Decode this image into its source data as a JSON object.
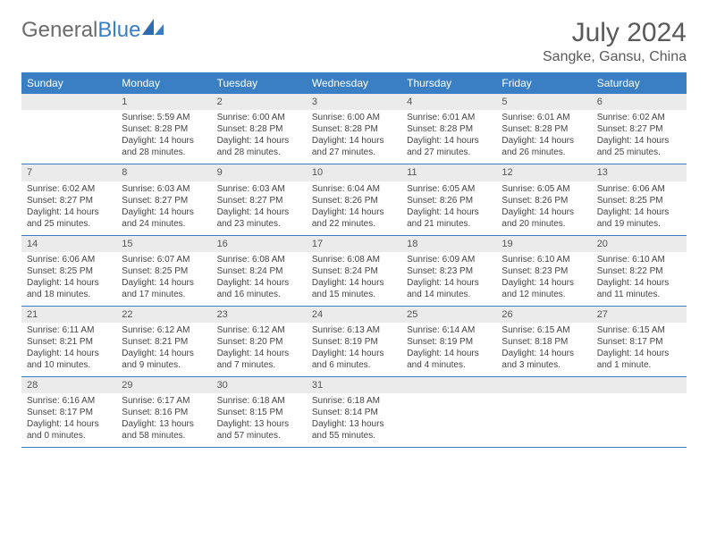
{
  "brand": {
    "part1": "General",
    "part2": "Blue"
  },
  "title": "July 2024",
  "location": "Sangke, Gansu, China",
  "colors": {
    "header_bg": "#3a7fc4",
    "header_text": "#ffffff",
    "daynum_bg": "#ebebeb",
    "text": "#444444",
    "brand_gray": "#6b6b6b",
    "brand_blue": "#3a7fc4"
  },
  "dayNames": [
    "Sunday",
    "Monday",
    "Tuesday",
    "Wednesday",
    "Thursday",
    "Friday",
    "Saturday"
  ],
  "weeks": [
    [
      {
        "n": "",
        "sunrise": "",
        "sunset": "",
        "daylight": ""
      },
      {
        "n": "1",
        "sunrise": "Sunrise: 5:59 AM",
        "sunset": "Sunset: 8:28 PM",
        "daylight": "Daylight: 14 hours and 28 minutes."
      },
      {
        "n": "2",
        "sunrise": "Sunrise: 6:00 AM",
        "sunset": "Sunset: 8:28 PM",
        "daylight": "Daylight: 14 hours and 28 minutes."
      },
      {
        "n": "3",
        "sunrise": "Sunrise: 6:00 AM",
        "sunset": "Sunset: 8:28 PM",
        "daylight": "Daylight: 14 hours and 27 minutes."
      },
      {
        "n": "4",
        "sunrise": "Sunrise: 6:01 AM",
        "sunset": "Sunset: 8:28 PM",
        "daylight": "Daylight: 14 hours and 27 minutes."
      },
      {
        "n": "5",
        "sunrise": "Sunrise: 6:01 AM",
        "sunset": "Sunset: 8:28 PM",
        "daylight": "Daylight: 14 hours and 26 minutes."
      },
      {
        "n": "6",
        "sunrise": "Sunrise: 6:02 AM",
        "sunset": "Sunset: 8:27 PM",
        "daylight": "Daylight: 14 hours and 25 minutes."
      }
    ],
    [
      {
        "n": "7",
        "sunrise": "Sunrise: 6:02 AM",
        "sunset": "Sunset: 8:27 PM",
        "daylight": "Daylight: 14 hours and 25 minutes."
      },
      {
        "n": "8",
        "sunrise": "Sunrise: 6:03 AM",
        "sunset": "Sunset: 8:27 PM",
        "daylight": "Daylight: 14 hours and 24 minutes."
      },
      {
        "n": "9",
        "sunrise": "Sunrise: 6:03 AM",
        "sunset": "Sunset: 8:27 PM",
        "daylight": "Daylight: 14 hours and 23 minutes."
      },
      {
        "n": "10",
        "sunrise": "Sunrise: 6:04 AM",
        "sunset": "Sunset: 8:26 PM",
        "daylight": "Daylight: 14 hours and 22 minutes."
      },
      {
        "n": "11",
        "sunrise": "Sunrise: 6:05 AM",
        "sunset": "Sunset: 8:26 PM",
        "daylight": "Daylight: 14 hours and 21 minutes."
      },
      {
        "n": "12",
        "sunrise": "Sunrise: 6:05 AM",
        "sunset": "Sunset: 8:26 PM",
        "daylight": "Daylight: 14 hours and 20 minutes."
      },
      {
        "n": "13",
        "sunrise": "Sunrise: 6:06 AM",
        "sunset": "Sunset: 8:25 PM",
        "daylight": "Daylight: 14 hours and 19 minutes."
      }
    ],
    [
      {
        "n": "14",
        "sunrise": "Sunrise: 6:06 AM",
        "sunset": "Sunset: 8:25 PM",
        "daylight": "Daylight: 14 hours and 18 minutes."
      },
      {
        "n": "15",
        "sunrise": "Sunrise: 6:07 AM",
        "sunset": "Sunset: 8:25 PM",
        "daylight": "Daylight: 14 hours and 17 minutes."
      },
      {
        "n": "16",
        "sunrise": "Sunrise: 6:08 AM",
        "sunset": "Sunset: 8:24 PM",
        "daylight": "Daylight: 14 hours and 16 minutes."
      },
      {
        "n": "17",
        "sunrise": "Sunrise: 6:08 AM",
        "sunset": "Sunset: 8:24 PM",
        "daylight": "Daylight: 14 hours and 15 minutes."
      },
      {
        "n": "18",
        "sunrise": "Sunrise: 6:09 AM",
        "sunset": "Sunset: 8:23 PM",
        "daylight": "Daylight: 14 hours and 14 minutes."
      },
      {
        "n": "19",
        "sunrise": "Sunrise: 6:10 AM",
        "sunset": "Sunset: 8:23 PM",
        "daylight": "Daylight: 14 hours and 12 minutes."
      },
      {
        "n": "20",
        "sunrise": "Sunrise: 6:10 AM",
        "sunset": "Sunset: 8:22 PM",
        "daylight": "Daylight: 14 hours and 11 minutes."
      }
    ],
    [
      {
        "n": "21",
        "sunrise": "Sunrise: 6:11 AM",
        "sunset": "Sunset: 8:21 PM",
        "daylight": "Daylight: 14 hours and 10 minutes."
      },
      {
        "n": "22",
        "sunrise": "Sunrise: 6:12 AM",
        "sunset": "Sunset: 8:21 PM",
        "daylight": "Daylight: 14 hours and 9 minutes."
      },
      {
        "n": "23",
        "sunrise": "Sunrise: 6:12 AM",
        "sunset": "Sunset: 8:20 PM",
        "daylight": "Daylight: 14 hours and 7 minutes."
      },
      {
        "n": "24",
        "sunrise": "Sunrise: 6:13 AM",
        "sunset": "Sunset: 8:19 PM",
        "daylight": "Daylight: 14 hours and 6 minutes."
      },
      {
        "n": "25",
        "sunrise": "Sunrise: 6:14 AM",
        "sunset": "Sunset: 8:19 PM",
        "daylight": "Daylight: 14 hours and 4 minutes."
      },
      {
        "n": "26",
        "sunrise": "Sunrise: 6:15 AM",
        "sunset": "Sunset: 8:18 PM",
        "daylight": "Daylight: 14 hours and 3 minutes."
      },
      {
        "n": "27",
        "sunrise": "Sunrise: 6:15 AM",
        "sunset": "Sunset: 8:17 PM",
        "daylight": "Daylight: 14 hours and 1 minute."
      }
    ],
    [
      {
        "n": "28",
        "sunrise": "Sunrise: 6:16 AM",
        "sunset": "Sunset: 8:17 PM",
        "daylight": "Daylight: 14 hours and 0 minutes."
      },
      {
        "n": "29",
        "sunrise": "Sunrise: 6:17 AM",
        "sunset": "Sunset: 8:16 PM",
        "daylight": "Daylight: 13 hours and 58 minutes."
      },
      {
        "n": "30",
        "sunrise": "Sunrise: 6:18 AM",
        "sunset": "Sunset: 8:15 PM",
        "daylight": "Daylight: 13 hours and 57 minutes."
      },
      {
        "n": "31",
        "sunrise": "Sunrise: 6:18 AM",
        "sunset": "Sunset: 8:14 PM",
        "daylight": "Daylight: 13 hours and 55 minutes."
      },
      {
        "n": "",
        "sunrise": "",
        "sunset": "",
        "daylight": ""
      },
      {
        "n": "",
        "sunrise": "",
        "sunset": "",
        "daylight": ""
      },
      {
        "n": "",
        "sunrise": "",
        "sunset": "",
        "daylight": ""
      }
    ]
  ]
}
